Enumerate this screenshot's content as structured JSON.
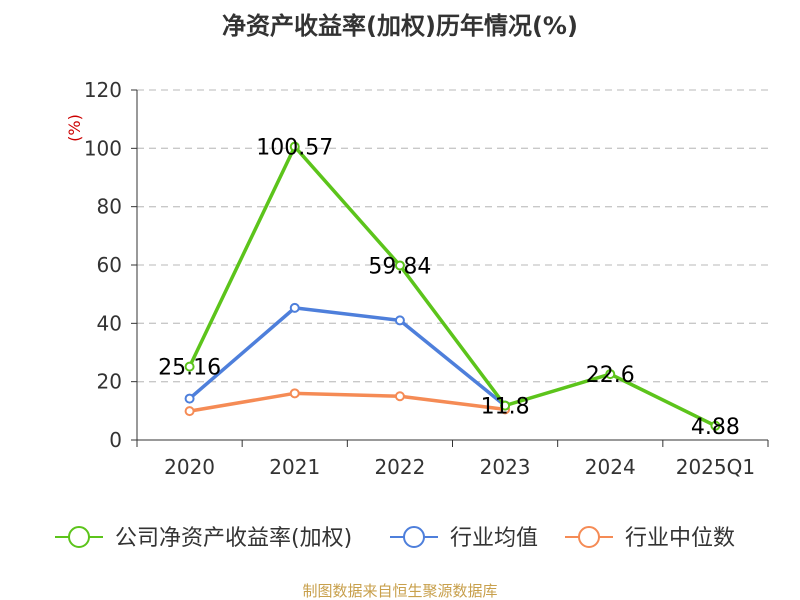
{
  "chart_data": {
    "type": "line",
    "title": "净资产收益率(加权)历年情况(%)",
    "ylabel": "(%)",
    "categories": [
      "2020",
      "2021",
      "2022",
      "2023",
      "2024",
      "2025Q1"
    ],
    "ylim": [
      0,
      120
    ],
    "yticks": [
      0,
      20,
      40,
      60,
      80,
      100,
      120
    ],
    "grid": true,
    "legend_position": "bottom",
    "series": [
      {
        "name": "公司净资产收益率(加权)",
        "color": "#5cc41b",
        "values": [
          25.16,
          100.57,
          59.84,
          11.8,
          22.6,
          4.88
        ],
        "labels": [
          "25.16",
          "100.57",
          "59.84",
          "11.8",
          "22.6",
          "4.88"
        ]
      },
      {
        "name": "行业均值",
        "color": "#4e7fdb",
        "values": [
          14.2,
          45.3,
          41.0,
          11.8,
          null,
          null
        ]
      },
      {
        "name": "行业中位数",
        "color": "#f58b55",
        "values": [
          9.9,
          16.0,
          15.0,
          10.5,
          null,
          null
        ]
      }
    ],
    "source": "制图数据来自恒生聚源数据库"
  }
}
